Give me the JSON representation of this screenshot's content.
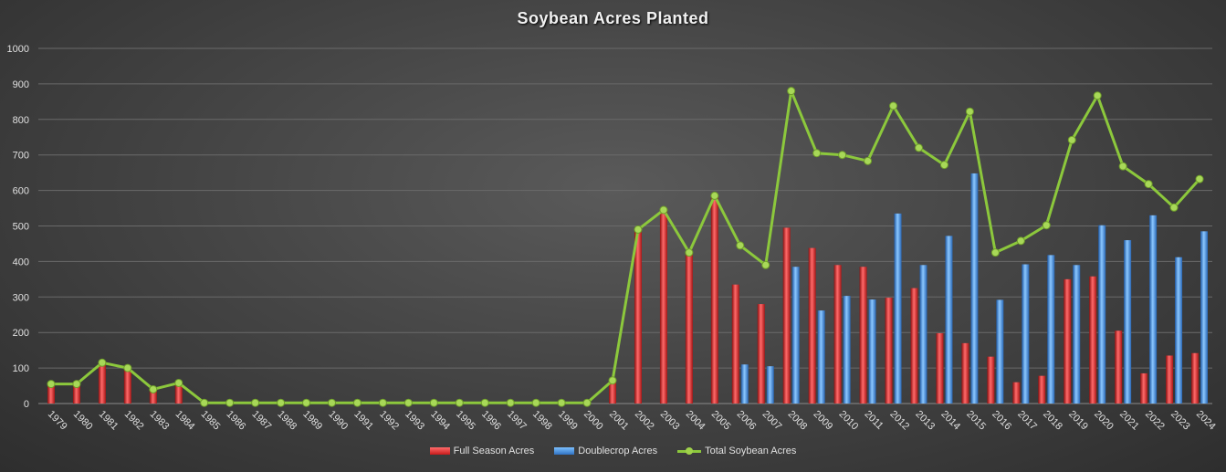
{
  "chart_data": {
    "type": "bar",
    "title": "Soybean Acres Planted",
    "xlabel": "",
    "ylabel": "",
    "ylim": [
      0,
      1000
    ],
    "yticks": [
      "0",
      "100",
      "200",
      "300",
      "400",
      "500",
      "600",
      "700",
      "800",
      "900",
      "1000"
    ],
    "grid": true,
    "legend_position": "bottom",
    "categories": [
      "1979",
      "1980",
      "1981",
      "1982",
      "1983",
      "1984",
      "1985",
      "1986",
      "1987",
      "1988",
      "1989",
      "1990",
      "1991",
      "1992",
      "1993",
      "1994",
      "1995",
      "1996",
      "1997",
      "1998",
      "1999",
      "2000",
      "2001",
      "2002",
      "2003",
      "2004",
      "2005",
      "2006",
      "2007",
      "2008",
      "2009",
      "2010",
      "2011",
      "2012",
      "2013",
      "2014",
      "2015",
      "2016",
      "2017",
      "2018",
      "2019",
      "2020",
      "2021",
      "2022",
      "2023",
      "2024"
    ],
    "series": [
      {
        "name": "Full Season Acres",
        "type": "bar",
        "color": "#d92b2b",
        "values": [
          55,
          55,
          115,
          100,
          40,
          58,
          0,
          0,
          0,
          0,
          0,
          0,
          0,
          0,
          0,
          0,
          0,
          0,
          0,
          0,
          0,
          0,
          65,
          490,
          545,
          425,
          585,
          335,
          280,
          495,
          438,
          390,
          385,
          298,
          325,
          198,
          170,
          132,
          60,
          78,
          350,
          358,
          205,
          85,
          135,
          142
        ]
      },
      {
        "name": "Doublecrop Acres",
        "type": "bar",
        "color": "#3f8ae0",
        "values": [
          0,
          0,
          0,
          0,
          0,
          0,
          0,
          0,
          0,
          0,
          0,
          0,
          0,
          0,
          0,
          0,
          0,
          0,
          0,
          0,
          0,
          0,
          0,
          0,
          0,
          0,
          0,
          110,
          105,
          385,
          262,
          303,
          293,
          535,
          390,
          472,
          648,
          292,
          392,
          418,
          390,
          502,
          460,
          530,
          412,
          485
        ]
      },
      {
        "name": "Total Soybean Acres",
        "type": "line",
        "color": "#8cc83c",
        "values": [
          55,
          55,
          115,
          100,
          40,
          58,
          2,
          2,
          2,
          2,
          2,
          2,
          2,
          2,
          2,
          2,
          2,
          2,
          2,
          2,
          2,
          2,
          65,
          490,
          545,
          425,
          585,
          445,
          390,
          880,
          705,
          700,
          683,
          838,
          720,
          672,
          822,
          425,
          458,
          502,
          742,
          867,
          668,
          618,
          552,
          632
        ]
      }
    ]
  }
}
